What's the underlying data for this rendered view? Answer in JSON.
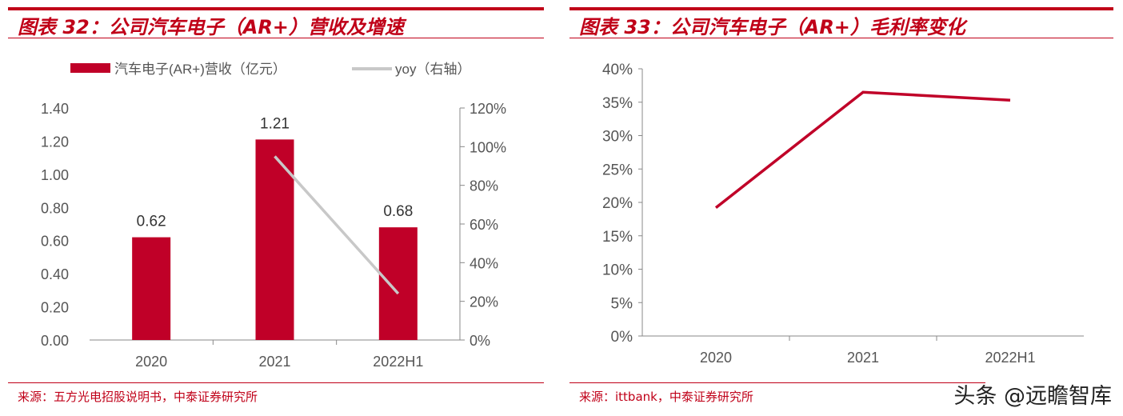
{
  "chart_data": [
    {
      "type": "bar+line",
      "title": "图表 32：公司汽车电子（AR+）营收及增速",
      "categories": [
        "2020",
        "2021",
        "2022H1"
      ],
      "series": [
        {
          "name": "汽车电子(AR+)营收（亿元）",
          "type": "bar",
          "axis": "left",
          "values": [
            0.62,
            1.21,
            0.68
          ],
          "data_labels": [
            "0.62",
            "1.21",
            "0.68"
          ],
          "color": "#c00028"
        },
        {
          "name": "yoy（右轴）",
          "type": "line",
          "axis": "right",
          "values": [
            null,
            95,
            24
          ],
          "color": "#c8c8c8"
        }
      ],
      "left_axis": {
        "ylim": [
          0,
          1.4
        ],
        "ticks": [
          "0.00",
          "0.20",
          "0.40",
          "0.60",
          "0.80",
          "1.00",
          "1.20",
          "1.40"
        ]
      },
      "right_axis": {
        "ylim": [
          0,
          120
        ],
        "ticks": [
          "0%",
          "20%",
          "40%",
          "60%",
          "80%",
          "100%",
          "120%"
        ]
      },
      "legend_placement": "top",
      "grid": false,
      "source": "来源：五方光电招股说明书，中泰证券研究所"
    },
    {
      "type": "line",
      "title": "图表 33：公司汽车电子（AR+）毛利率变化",
      "categories": [
        "2020",
        "2021",
        "2022H1"
      ],
      "series": [
        {
          "values": [
            19.2,
            36.5,
            35.3
          ],
          "color": "#c00028"
        }
      ],
      "ylim": [
        0,
        40
      ],
      "ticks": [
        "0%",
        "5%",
        "10%",
        "15%",
        "20%",
        "25%",
        "30%",
        "35%",
        "40%"
      ],
      "grid": false,
      "source": "来源：ittbank，中泰证券研究所"
    }
  ],
  "watermark": "头条 @远瞻智库"
}
